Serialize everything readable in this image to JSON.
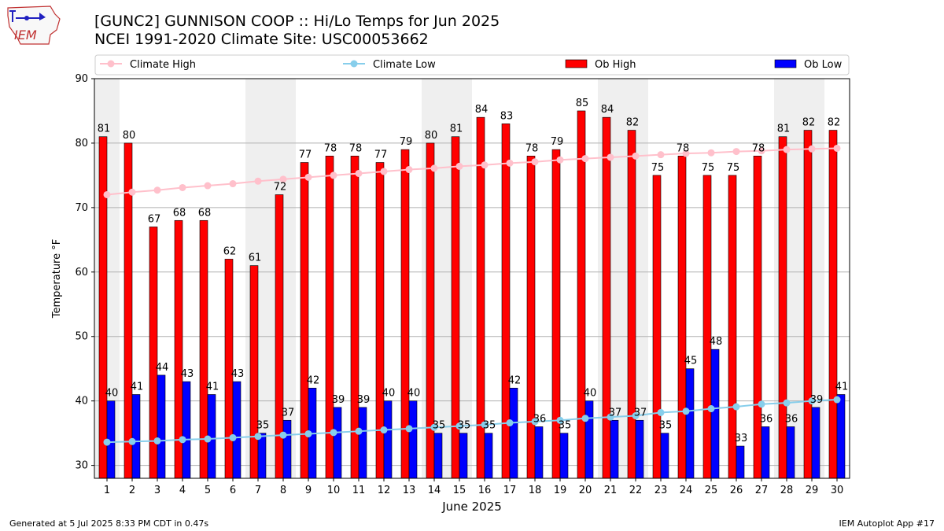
{
  "header": {
    "title": "[GUNC2] GUNNISON COOP :: Hi/Lo Temps for Jun 2025",
    "subtitle": "NCEI 1991-2020 Climate Site: USC00053662",
    "logo_text": "IEM"
  },
  "footer": {
    "left": "Generated at 5 Jul 2025 8:33 PM CDT in 0.47s",
    "right": "IEM Autoplot App #17"
  },
  "legend": {
    "items": [
      {
        "label": "Climate High",
        "kind": "line",
        "color": "#ffc0cb"
      },
      {
        "label": "Climate Low",
        "kind": "line",
        "color": "#87ceeb"
      },
      {
        "label": "Ob High",
        "kind": "bar",
        "color": "#ff0000"
      },
      {
        "label": "Ob Low",
        "kind": "bar",
        "color": "#0000ff"
      }
    ],
    "placement": "top"
  },
  "chart_data": {
    "type": "bar",
    "xlabel": "June 2025",
    "ylabel": "Temperature °F",
    "ylim": [
      28,
      90
    ],
    "yticks": [
      30,
      40,
      50,
      60,
      70,
      80,
      90
    ],
    "grid": "horizontal",
    "categories": [
      "1",
      "2",
      "3",
      "4",
      "5",
      "6",
      "7",
      "8",
      "9",
      "10",
      "11",
      "12",
      "13",
      "14",
      "15",
      "16",
      "17",
      "18",
      "19",
      "20",
      "21",
      "22",
      "23",
      "24",
      "25",
      "26",
      "27",
      "28",
      "29",
      "30"
    ],
    "weekend_days": [
      1,
      7,
      8,
      14,
      15,
      21,
      22,
      28,
      29
    ],
    "series": [
      {
        "name": "Ob High",
        "type": "bar",
        "color": "#ff0000",
        "values": [
          81,
          80,
          67,
          68,
          68,
          62,
          61,
          72,
          77,
          78,
          78,
          77,
          79,
          80,
          81,
          84,
          83,
          78,
          79,
          85,
          84,
          82,
          75,
          78,
          75,
          75,
          78,
          81,
          82,
          82
        ]
      },
      {
        "name": "Ob Low",
        "type": "bar",
        "color": "#0000ff",
        "values": [
          40,
          41,
          44,
          43,
          41,
          43,
          35,
          37,
          42,
          39,
          39,
          40,
          40,
          35,
          35,
          35,
          42,
          36,
          35,
          40,
          37,
          37,
          35,
          45,
          48,
          33,
          36,
          36,
          39,
          41
        ]
      },
      {
        "name": "Climate High",
        "type": "line",
        "color": "#ffc0cb",
        "values": [
          72.0,
          72.4,
          72.7,
          73.1,
          73.4,
          73.7,
          74.1,
          74.4,
          74.7,
          75.0,
          75.3,
          75.6,
          75.9,
          76.1,
          76.4,
          76.6,
          76.9,
          77.1,
          77.4,
          77.6,
          77.8,
          78.0,
          78.2,
          78.4,
          78.5,
          78.7,
          78.8,
          79.0,
          79.1,
          79.2
        ]
      },
      {
        "name": "Climate Low",
        "type": "line",
        "color": "#87ceeb",
        "values": [
          33.6,
          33.7,
          33.8,
          34.0,
          34.1,
          34.3,
          34.5,
          34.7,
          34.9,
          35.1,
          35.3,
          35.5,
          35.7,
          35.9,
          36.1,
          36.3,
          36.6,
          36.8,
          37.0,
          37.3,
          37.5,
          37.7,
          38.2,
          38.4,
          38.8,
          39.1,
          39.5,
          39.7,
          40.0,
          40.2
        ]
      }
    ]
  }
}
